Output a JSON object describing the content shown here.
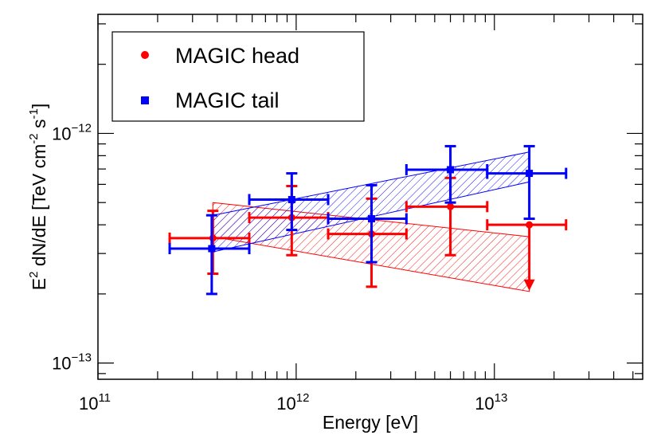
{
  "chart_data": {
    "type": "scatter",
    "xlabel": "Energy [eV]",
    "ylabel_parts": {
      "a": "E",
      "a_sup": "2",
      "b": " dN/dE [TeV cm",
      "b_sup": "-2",
      "c": " s",
      "c_sup": "-1",
      "d": "]"
    },
    "x_scale": "log",
    "y_scale": "log",
    "xlim": [
      100000000000.0,
      56000000000000.0
    ],
    "ylim": [
      8.5e-14,
      3.3e-12
    ],
    "grid": false,
    "legend_position": "top-left",
    "xticks": [
      {
        "value": 100000000000.0,
        "base": "10",
        "exp": "11"
      },
      {
        "value": 1000000000000.0,
        "base": "10",
        "exp": "12"
      },
      {
        "value": 10000000000000.0,
        "base": "10",
        "exp": "13"
      }
    ],
    "yticks": [
      {
        "value": 1e-13,
        "base": "10",
        "exp": "−13"
      },
      {
        "value": 1e-12,
        "base": "10",
        "exp": "−12"
      }
    ],
    "series": [
      {
        "name": "MAGIC head",
        "color": "#ff0000",
        "marker": "circle",
        "points": [
          {
            "x": 380000000000.0,
            "xlo": 230000000000.0,
            "xhi": 580000000000.0,
            "y": 3.5e-13,
            "ylo": 2.45e-13,
            "yhi": 4.6e-13
          },
          {
            "x": 950000000000.0,
            "xlo": 580000000000.0,
            "xhi": 1450000000000.0,
            "y": 4.3e-13,
            "ylo": 2.95e-13,
            "yhi": 5.9e-13
          },
          {
            "x": 2400000000000.0,
            "xlo": 1450000000000.0,
            "xhi": 3600000000000.0,
            "y": 3.65e-13,
            "ylo": 2.15e-13,
            "yhi": 5.2e-13
          },
          {
            "x": 6000000000000.0,
            "xlo": 3600000000000.0,
            "xhi": 9200000000000.0,
            "y": 4.8e-13,
            "ylo": 2.95e-13,
            "yhi": 6.4e-13
          }
        ],
        "upper_limits": [
          {
            "x": 15000000000000.0,
            "xlo": 9200000000000.0,
            "xhi": 23000000000000.0,
            "y": 4e-13,
            "arrow_to": 2.1e-13
          }
        ],
        "band": {
          "x_range": [
            380000000000.0,
            15000000000000.0
          ],
          "upper": [
            5e-13,
            3.55e-13
          ],
          "lower": [
            3.55e-13,
            2.05e-13
          ]
        }
      },
      {
        "name": "MAGIC tail",
        "color": "#0000ff",
        "marker": "square",
        "points": [
          {
            "x": 375000000000.0,
            "xlo": 230000000000.0,
            "xhi": 580000000000.0,
            "y": 3.15e-13,
            "ylo": 2e-13,
            "yhi": 4.4e-13
          },
          {
            "x": 950000000000.0,
            "xlo": 580000000000.0,
            "xhi": 1450000000000.0,
            "y": 5.15e-13,
            "ylo": 3.8e-13,
            "yhi": 6.7e-13
          },
          {
            "x": 2400000000000.0,
            "xlo": 1450000000000.0,
            "xhi": 3600000000000.0,
            "y": 4.25e-13,
            "ylo": 2.75e-13,
            "yhi": 5.95e-13
          },
          {
            "x": 6000000000000.0,
            "xlo": 3600000000000.0,
            "xhi": 9200000000000.0,
            "y": 6.95e-13,
            "ylo": 5e-13,
            "yhi": 8.8e-13
          },
          {
            "x": 15000000000000.0,
            "xlo": 9200000000000.0,
            "xhi": 23000000000000.0,
            "y": 6.7e-13,
            "ylo": 4.25e-13,
            "yhi": 8.8e-13
          }
        ],
        "band": {
          "x_range": [
            380000000000.0,
            15000000000000.0
          ],
          "upper": [
            4.4e-13,
            8.3e-13
          ],
          "lower": [
            3.05e-13,
            6.15e-13
          ]
        }
      }
    ]
  }
}
